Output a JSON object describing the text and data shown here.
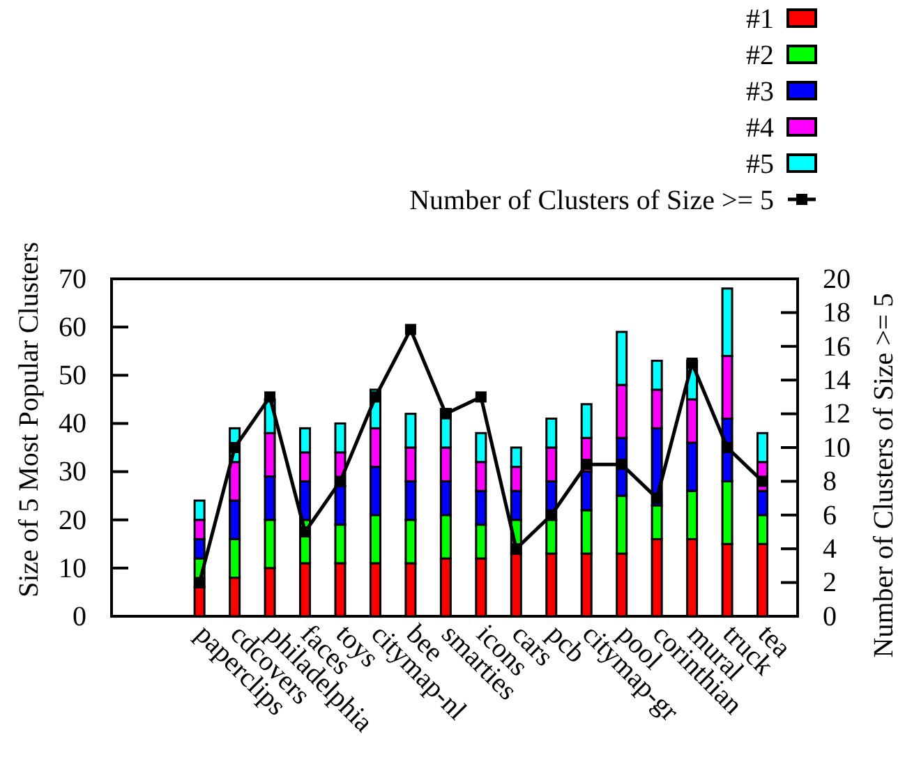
{
  "chart_data": {
    "type": "bar",
    "stacked": true,
    "ylabel": "Size of 5 Most Popular Clusters",
    "y2label": "Number of Clusters of Size >= 5",
    "legend": "top right",
    "marker": "square",
    "categories": [
      "paperclips",
      "cdcovers",
      "philadelphia",
      "faces",
      "toys",
      "citymap-nl",
      "bee",
      "smarties",
      "icons",
      "cars",
      "pcb",
      "citymap-gr",
      "pool",
      "corinthian",
      "mural",
      "truck",
      "tea"
    ],
    "ylim": [
      0,
      70
    ],
    "yticks": [
      0,
      10,
      20,
      30,
      40,
      50,
      60,
      70
    ],
    "y2lim": [
      0,
      20
    ],
    "y2ticks": [
      0,
      2,
      4,
      6,
      8,
      10,
      12,
      14,
      16,
      18,
      20
    ],
    "series": [
      {
        "name": "#1",
        "color": "#ff0000",
        "values": [
          6,
          8,
          10,
          11,
          11,
          11,
          11,
          12,
          12,
          13,
          13,
          13,
          13,
          16,
          16,
          15,
          15
        ]
      },
      {
        "name": "#2",
        "color": "#00ff00",
        "values": [
          6,
          8,
          10,
          9,
          8,
          10,
          9,
          9,
          7,
          7,
          7,
          9,
          12,
          7,
          10,
          13,
          6
        ]
      },
      {
        "name": "#3",
        "color": "#0000ff",
        "values": [
          4,
          8,
          9,
          8,
          8,
          10,
          8,
          7,
          7,
          6,
          8,
          8,
          12,
          16,
          10,
          13,
          5
        ]
      },
      {
        "name": "#4",
        "color": "#ff00ff",
        "values": [
          4,
          8,
          9,
          6,
          7,
          8,
          7,
          7,
          6,
          5,
          7,
          7,
          11,
          8,
          9,
          13,
          6
        ]
      },
      {
        "name": "#5",
        "color": "#00ffff",
        "values": [
          4,
          7,
          7,
          5,
          6,
          8,
          7,
          8,
          6,
          4,
          6,
          7,
          11,
          6,
          8,
          14,
          6
        ]
      },
      {
        "name": "Number of Clusters of Size >= 5",
        "type": "line",
        "axis": "y2",
        "color": "#000000",
        "values": [
          2,
          10,
          13,
          5,
          8,
          13,
          17,
          12,
          13,
          4,
          6,
          9,
          9,
          7,
          15,
          10,
          8
        ]
      }
    ]
  }
}
